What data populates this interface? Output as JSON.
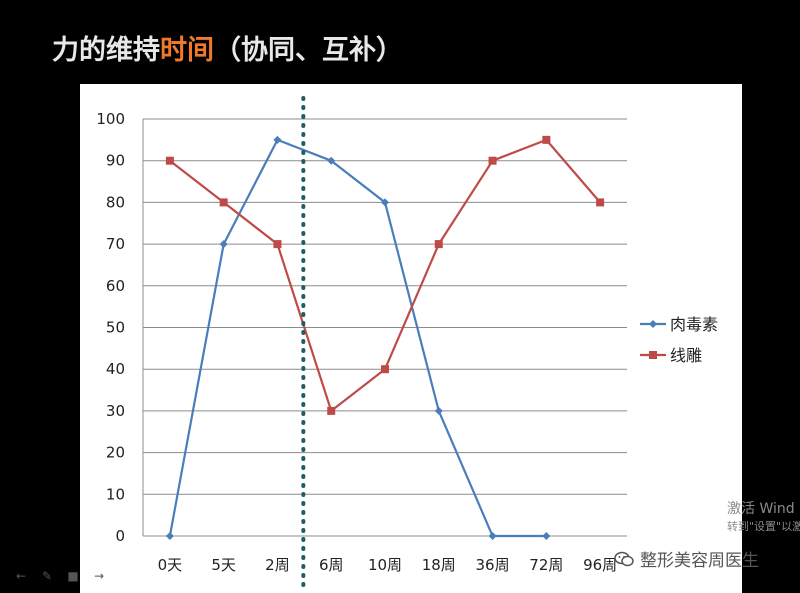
{
  "slide": {
    "title_main": "力的维持",
    "title_accent": "时间",
    "title_tail": "（协同、互补）",
    "accent_color": "#f07a2a"
  },
  "chart_data": {
    "type": "line",
    "categories": [
      "0天",
      "5天",
      "2周",
      "6周",
      "10周",
      "18周",
      "36周",
      "72周",
      "96周"
    ],
    "ylim": [
      0,
      100
    ],
    "yticks": [
      0,
      10,
      20,
      30,
      40,
      50,
      60,
      70,
      80,
      90,
      100
    ],
    "grid": true,
    "legend_position": "right",
    "divider_after_category": "2周",
    "series": [
      {
        "name": "肉毒素",
        "color": "#4a7ebb",
        "marker": "diamond",
        "values": [
          0,
          70,
          95,
          90,
          80,
          30,
          0,
          0,
          null
        ]
      },
      {
        "name": "线雕",
        "color": "#be4b48",
        "marker": "square",
        "values": [
          90,
          80,
          70,
          30,
          40,
          70,
          90,
          95,
          80
        ]
      }
    ]
  },
  "overlay": {
    "activate_line1": "激活 Wind",
    "activate_line2": "转到\"设置\"以激",
    "watermark_text": "整形美容周医生",
    "watermark_icon": "wechat-icon"
  },
  "nav": {
    "icons": [
      "back-arrow-icon",
      "pen-icon",
      "menu-icon",
      "forward-arrow-icon"
    ]
  }
}
